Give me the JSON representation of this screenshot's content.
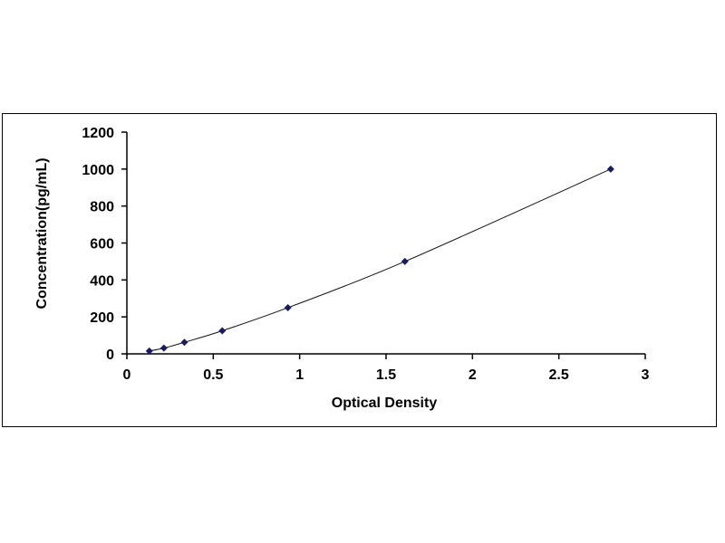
{
  "chart_data": {
    "type": "scatter",
    "title": "",
    "xlabel": "Optical Density",
    "ylabel": "Concentration(pg/mL)",
    "xlim": [
      0,
      3
    ],
    "ylim": [
      0,
      1200
    ],
    "xticks": [
      "0",
      "0.5",
      "1",
      "1.5",
      "2",
      "2.5",
      "3"
    ],
    "yticks": [
      "0",
      "200",
      "400",
      "600",
      "800",
      "1000",
      "1200"
    ],
    "grid": false,
    "legend": "none",
    "trendline": "smooth curve",
    "marker": "diamond",
    "color": "#1a1a5e",
    "series": [
      {
        "x": [
          0.13,
          0.214,
          0.333,
          0.552,
          0.932,
          1.609,
          2.8
        ],
        "y": [
          15.6,
          31.25,
          62.5,
          125,
          250,
          500,
          1000
        ]
      }
    ]
  }
}
